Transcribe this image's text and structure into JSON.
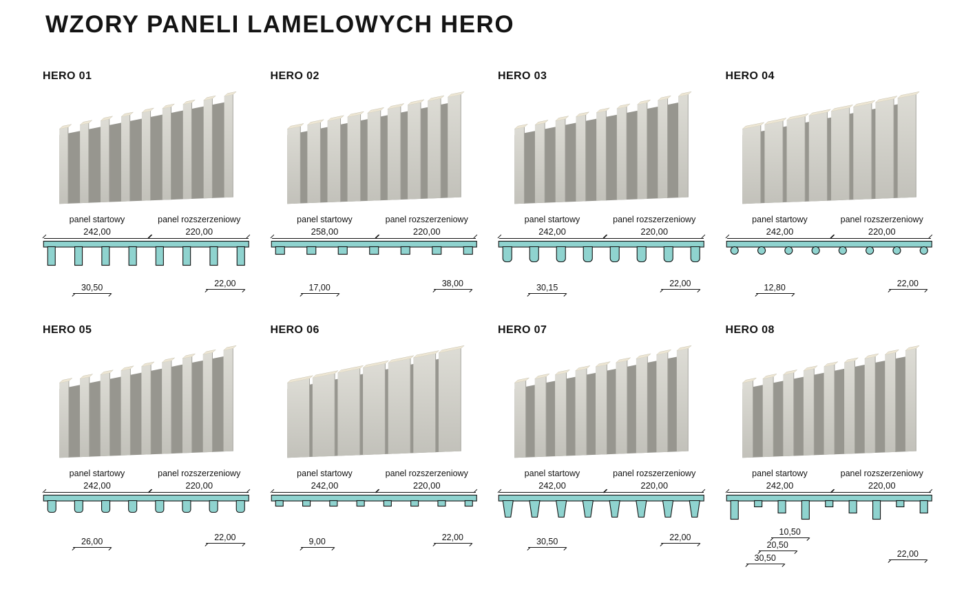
{
  "page": {
    "title": "WZORY PANELI LAMELOWYCH HERO"
  },
  "labels": {
    "start": "panel startowy",
    "ext": "panel rozszerzeniowy"
  },
  "colors": {
    "teal": "#8fd3cf",
    "outline": "#111111",
    "slat_front_light": "#dddcd5",
    "slat_front_dark": "#c2c1ba",
    "slat_top": "#ede6d4",
    "groove": "#97968f"
  },
  "panels": [
    {
      "name": "HERO 01",
      "start_dim": "242,00",
      "ext_dim": "220,00",
      "dims_left": [
        "30,50"
      ],
      "dim_right": "22,00",
      "profile": "rect-tall",
      "illu": {
        "slats": 9,
        "slat_w": 11,
        "gap": 15
      }
    },
    {
      "name": "HERO 02",
      "start_dim": "258,00",
      "ext_dim": "220,00",
      "dims_left": [
        "17,00"
      ],
      "dim_right": "38,00",
      "profile": "tab",
      "illu": {
        "slats": 9,
        "slat_w": 17,
        "gap": 9
      }
    },
    {
      "name": "HERO 03",
      "start_dim": "242,00",
      "ext_dim": "220,00",
      "dims_left": [
        "30,15"
      ],
      "dim_right": "22,00",
      "profile": "round",
      "illu": {
        "slats": 9,
        "slat_w": 12,
        "gap": 13
      }
    },
    {
      "name": "HERO 04",
      "start_dim": "242,00",
      "ext_dim": "220,00",
      "dims_left": [
        "12,80"
      ],
      "dim_right": "22,00",
      "profile": "dot",
      "illu": {
        "slats": 8,
        "slat_w": 24,
        "gap": 5
      }
    },
    {
      "name": "HERO 05",
      "start_dim": "242,00",
      "ext_dim": "220,00",
      "dims_left": [
        "26,00"
      ],
      "dim_right": "22,00",
      "profile": "round-rect",
      "illu": {
        "slats": 9,
        "slat_w": 12,
        "gap": 14
      }
    },
    {
      "name": "HERO 06",
      "start_dim": "242,00",
      "ext_dim": "220,00",
      "dims_left": [
        "9,00"
      ],
      "dim_right": "22,00",
      "profile": "tab-small",
      "illu": {
        "slats": 7,
        "slat_w": 30,
        "gap": 4
      }
    },
    {
      "name": "HERO 07",
      "start_dim": "242,00",
      "ext_dim": "220,00",
      "dims_left": [
        "30,50"
      ],
      "dim_right": "22,00",
      "profile": "trapezoid",
      "illu": {
        "slats": 9,
        "slat_w": 14,
        "gap": 11
      }
    },
    {
      "name": "HERO 08",
      "start_dim": "242,00",
      "ext_dim": "220,00",
      "dims_left": [
        "10,50",
        "20,50",
        "30,50"
      ],
      "dim_right": "22,00",
      "profile": "alt",
      "illu": {
        "slats": 9,
        "slat_w": 12,
        "gap": 11
      }
    }
  ]
}
